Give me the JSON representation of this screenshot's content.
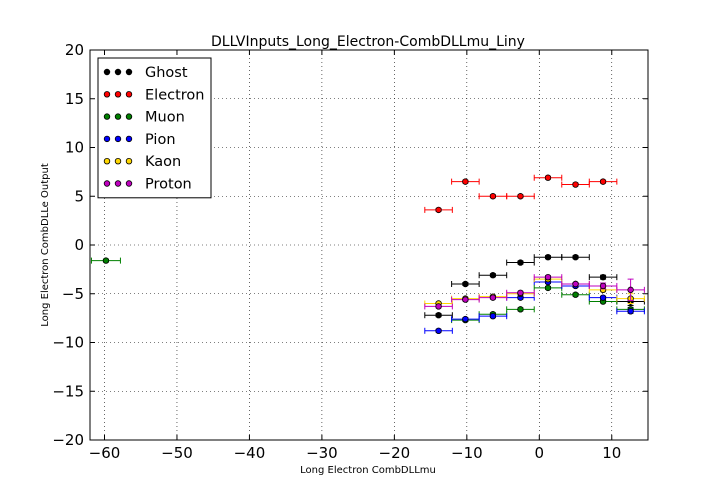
{
  "chart_data": {
    "type": "scatter",
    "title": "DLLVInputs_Long_Electron-CombDLLmu_Liny",
    "xlabel": "Long Electron CombDLLmu",
    "ylabel": "Long Electron CombDLLe Output",
    "xlim": [
      -62,
      15
    ],
    "ylim": [
      -20,
      20
    ],
    "xticks": [
      -60,
      -50,
      -40,
      -30,
      -20,
      -10,
      0,
      10
    ],
    "yticks": [
      -20,
      -15,
      -10,
      -5,
      0,
      5,
      10,
      15,
      20
    ],
    "grid": true,
    "legend_position": "top-left",
    "series": [
      {
        "name": "Ghost",
        "color": "#000000",
        "points": [
          {
            "x": -13.9,
            "xerr": 1.9,
            "y": -7.2,
            "yerr": 0.15
          },
          {
            "x": -10.2,
            "xerr": 1.9,
            "y": -4.0,
            "yerr": 0.15
          },
          {
            "x": -6.4,
            "xerr": 1.9,
            "y": -3.1,
            "yerr": 0.15
          },
          {
            "x": -2.6,
            "xerr": 1.9,
            "y": -1.8,
            "yerr": 0.15
          },
          {
            "x": 1.2,
            "xerr": 1.9,
            "y": -1.25,
            "yerr": 0.15
          },
          {
            "x": 5.0,
            "xerr": 1.9,
            "y": -1.25,
            "yerr": 0.15
          },
          {
            "x": 8.8,
            "xerr": 1.9,
            "y": -3.3,
            "yerr": 0.2
          },
          {
            "x": 12.6,
            "xerr": 1.9,
            "y": -5.8,
            "yerr": 0.4
          }
        ]
      },
      {
        "name": "Electron",
        "color": "#ff0000",
        "points": [
          {
            "x": -13.9,
            "xerr": 1.9,
            "y": 3.6,
            "yerr": 0.15
          },
          {
            "x": -10.2,
            "xerr": 1.9,
            "y": 6.5,
            "yerr": 0.15
          },
          {
            "x": -6.4,
            "xerr": 1.9,
            "y": 5.0,
            "yerr": 0.15
          },
          {
            "x": -2.6,
            "xerr": 1.9,
            "y": 5.0,
            "yerr": 0.15
          },
          {
            "x": 1.2,
            "xerr": 1.9,
            "y": 6.9,
            "yerr": 0.15
          },
          {
            "x": 5.0,
            "xerr": 1.9,
            "y": 6.2,
            "yerr": 0.15
          },
          {
            "x": 8.8,
            "xerr": 1.9,
            "y": 6.5,
            "yerr": 0.15
          }
        ]
      },
      {
        "name": "Muon",
        "color": "#008000",
        "points": [
          {
            "x": -59.8,
            "xerr": 2.0,
            "y": -1.6,
            "yerr": 0.15
          },
          {
            "x": -10.2,
            "xerr": 1.9,
            "y": -7.7,
            "yerr": 0.15
          },
          {
            "x": -6.4,
            "xerr": 1.9,
            "y": -7.1,
            "yerr": 0.15
          },
          {
            "x": -2.6,
            "xerr": 1.9,
            "y": -6.6,
            "yerr": 0.15
          },
          {
            "x": 1.2,
            "xerr": 1.9,
            "y": -4.4,
            "yerr": 0.15
          },
          {
            "x": 5.0,
            "xerr": 1.9,
            "y": -5.1,
            "yerr": 0.15
          },
          {
            "x": 8.8,
            "xerr": 1.9,
            "y": -5.8,
            "yerr": 0.15
          },
          {
            "x": 12.6,
            "xerr": 1.9,
            "y": -6.6,
            "yerr": 0.2
          }
        ]
      },
      {
        "name": "Pion",
        "color": "#0000ff",
        "points": [
          {
            "x": -13.9,
            "xerr": 1.9,
            "y": -8.8,
            "yerr": 0.15
          },
          {
            "x": -10.2,
            "xerr": 1.9,
            "y": -7.6,
            "yerr": 0.15
          },
          {
            "x": -6.4,
            "xerr": 1.9,
            "y": -7.3,
            "yerr": 0.15
          },
          {
            "x": -2.6,
            "xerr": 1.9,
            "y": -5.4,
            "yerr": 0.15
          },
          {
            "x": 1.2,
            "xerr": 1.9,
            "y": -3.8,
            "yerr": 0.15
          },
          {
            "x": 5.0,
            "xerr": 1.9,
            "y": -4.2,
            "yerr": 0.15
          },
          {
            "x": 8.8,
            "xerr": 1.9,
            "y": -5.4,
            "yerr": 0.15
          },
          {
            "x": 12.6,
            "xerr": 1.9,
            "y": -6.8,
            "yerr": 0.2
          }
        ]
      },
      {
        "name": "Kaon",
        "color": "#ffd700",
        "points": [
          {
            "x": -13.9,
            "xerr": 1.9,
            "y": -6.0,
            "yerr": 0.15
          },
          {
            "x": -10.2,
            "xerr": 1.9,
            "y": -5.5,
            "yerr": 0.15
          },
          {
            "x": -6.4,
            "xerr": 1.9,
            "y": -5.3,
            "yerr": 0.15
          },
          {
            "x": -2.6,
            "xerr": 1.9,
            "y": -5.0,
            "yerr": 0.15
          },
          {
            "x": 1.2,
            "xerr": 1.9,
            "y": -3.5,
            "yerr": 0.15
          },
          {
            "x": 5.0,
            "xerr": 1.9,
            "y": -4.0,
            "yerr": 0.15
          },
          {
            "x": 8.8,
            "xerr": 1.9,
            "y": -4.6,
            "yerr": 0.2
          },
          {
            "x": 12.6,
            "xerr": 1.9,
            "y": -5.5,
            "yerr": 0.5
          }
        ]
      },
      {
        "name": "Proton",
        "color": "#bf00bf",
        "points": [
          {
            "x": -13.9,
            "xerr": 1.9,
            "y": -6.3,
            "yerr": 0.15
          },
          {
            "x": -10.2,
            "xerr": 1.9,
            "y": -5.6,
            "yerr": 0.15
          },
          {
            "x": -6.4,
            "xerr": 1.9,
            "y": -5.4,
            "yerr": 0.15
          },
          {
            "x": -2.6,
            "xerr": 1.9,
            "y": -4.9,
            "yerr": 0.15
          },
          {
            "x": 1.2,
            "xerr": 1.9,
            "y": -3.3,
            "yerr": 0.15
          },
          {
            "x": 5.0,
            "xerr": 1.9,
            "y": -4.0,
            "yerr": 0.15
          },
          {
            "x": 8.8,
            "xerr": 1.9,
            "y": -4.2,
            "yerr": 0.3
          },
          {
            "x": 12.6,
            "xerr": 1.9,
            "y": -4.6,
            "yerr": 1.1
          }
        ]
      }
    ]
  }
}
